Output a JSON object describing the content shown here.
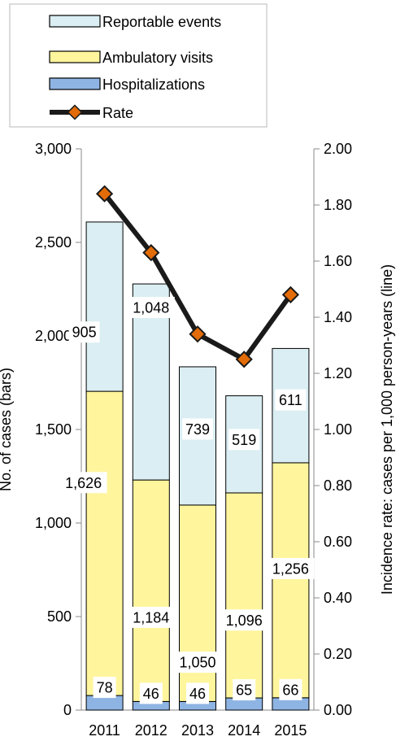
{
  "chart_data": {
    "type": "bar",
    "stacked": true,
    "categories": [
      "2011",
      "2012",
      "2013",
      "2014",
      "2015"
    ],
    "series": [
      {
        "name": "Hospitalizations",
        "values": [
          78,
          46,
          46,
          65,
          66
        ],
        "color": "#8eb4e3"
      },
      {
        "name": "Ambulatory visits",
        "values": [
          1626,
          1184,
          1050,
          1096,
          1256
        ],
        "color": "#fff59d"
      },
      {
        "name": "Reportable events",
        "values": [
          905,
          1048,
          739,
          519,
          611
        ],
        "color": "#daeef3"
      }
    ],
    "line_series": {
      "name": "Rate",
      "values": [
        1.84,
        1.63,
        1.34,
        1.25,
        1.48
      ],
      "color": "#1a1a1a",
      "marker_color": "#e36c09"
    },
    "ylabel_left": "No. of cases (bars)",
    "ylabel_right": "Incidence rate: cases per 1,000 person-years (line)",
    "ylim_left": [
      0,
      3000
    ],
    "ylim_right": [
      0,
      2.0
    ],
    "yticks_left": [
      "0",
      "500",
      "1,000",
      "1,500",
      "2,000",
      "2,500",
      "3,000"
    ],
    "yticks_right": [
      "0.00",
      "0.20",
      "0.40",
      "0.60",
      "0.80",
      "1.00",
      "1.20",
      "1.40",
      "1.60",
      "1.80",
      "2.00"
    ],
    "data_labels": {
      "Hospitalizations": [
        "78",
        "46",
        "46",
        "65",
        "66"
      ],
      "Ambulatory visits": [
        "1,626",
        "1,184",
        "1,050",
        "1,096",
        "1,256"
      ],
      "Reportable events": [
        "905",
        "1,048",
        "739",
        "519",
        "611"
      ]
    },
    "legend": [
      "Reportable events",
      "Ambulatory visits",
      "Hospitalizations",
      "Rate"
    ],
    "legend_position": "top",
    "grid": false
  }
}
